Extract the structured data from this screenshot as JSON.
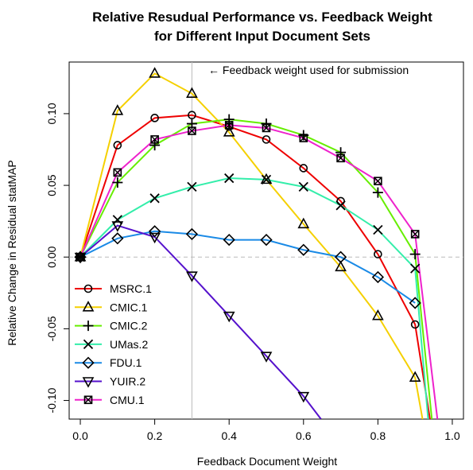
{
  "chart_data": {
    "type": "line",
    "title": [
      "Relative Resudual Performance vs. Feedback Weight",
      "for Different Input Document Sets"
    ],
    "xlabel": "Feedback Document Weight",
    "ylabel": "Relative Change in Residual statMAP",
    "xlim": [
      -0.03,
      1.03
    ],
    "ylim": [
      -0.113,
      0.136
    ],
    "xticks": [
      0.0,
      0.2,
      0.4,
      0.6,
      0.8,
      1.0
    ],
    "xtick_labels": [
      "0.0",
      "0.2",
      "0.4",
      "0.6",
      "0.8",
      "1.0"
    ],
    "yticks": [
      -0.1,
      -0.05,
      0.0,
      0.05,
      0.1
    ],
    "ytick_labels": [
      "-0.10",
      "-0.05",
      "0.00",
      "0.05",
      "0.10"
    ],
    "reference_lines": {
      "horizontal_y": 0.0,
      "vertical_x": 0.3
    },
    "annotation": "← Feedback weight used for submission",
    "legend_position": "bottom-left",
    "grid": false,
    "series": [
      {
        "name": "MSRC.1",
        "color": "#ee0000",
        "marker": "circle",
        "x": [
          0.0,
          0.1,
          0.2,
          0.3,
          0.4,
          0.5,
          0.6,
          0.7,
          0.8,
          0.9,
          0.94
        ],
        "y": [
          0.0,
          0.078,
          0.097,
          0.099,
          0.091,
          0.082,
          0.062,
          0.039,
          0.002,
          -0.047,
          -0.113
        ],
        "markers": [
          true,
          true,
          true,
          true,
          true,
          true,
          true,
          true,
          true,
          true,
          false
        ]
      },
      {
        "name": "CMIC.1",
        "color": "#f5d000",
        "marker": "triangle-up",
        "x": [
          0.0,
          0.1,
          0.2,
          0.3,
          0.4,
          0.5,
          0.6,
          0.7,
          0.8,
          0.9,
          0.92
        ],
        "y": [
          0.0,
          0.102,
          0.128,
          0.114,
          0.087,
          0.054,
          0.023,
          -0.007,
          -0.041,
          -0.084,
          -0.113
        ],
        "markers": [
          true,
          true,
          true,
          true,
          true,
          true,
          true,
          true,
          true,
          true,
          false
        ]
      },
      {
        "name": "CMIC.2",
        "color": "#66ee00",
        "marker": "plus",
        "x": [
          0.0,
          0.1,
          0.2,
          0.3,
          0.4,
          0.5,
          0.6,
          0.7,
          0.8,
          0.9,
          0.945
        ],
        "y": [
          0.0,
          0.052,
          0.078,
          0.093,
          0.096,
          0.093,
          0.085,
          0.073,
          0.045,
          0.002,
          -0.113
        ],
        "markers": [
          true,
          true,
          true,
          true,
          true,
          true,
          true,
          true,
          true,
          true,
          false
        ]
      },
      {
        "name": "UMas.2",
        "color": "#33eeaa",
        "marker": "x",
        "x": [
          0.0,
          0.1,
          0.2,
          0.3,
          0.4,
          0.5,
          0.6,
          0.7,
          0.8,
          0.9,
          0.935
        ],
        "y": [
          0.0,
          0.026,
          0.041,
          0.049,
          0.055,
          0.054,
          0.049,
          0.036,
          0.019,
          -0.008,
          -0.113
        ],
        "markers": [
          true,
          true,
          true,
          true,
          true,
          true,
          true,
          true,
          true,
          true,
          false
        ]
      },
      {
        "name": "FDU.1",
        "color": "#1a8ae6",
        "marker": "diamond",
        "x": [
          0.0,
          0.1,
          0.2,
          0.3,
          0.4,
          0.5,
          0.6,
          0.7,
          0.8,
          0.9
        ],
        "y": [
          0.0,
          0.013,
          0.018,
          0.016,
          0.012,
          0.012,
          0.005,
          0.0,
          -0.014,
          -0.032
        ],
        "markers": [
          true,
          true,
          true,
          true,
          true,
          true,
          true,
          true,
          true,
          true
        ]
      },
      {
        "name": "YUIR.2",
        "color": "#5511cc",
        "marker": "triangle-down",
        "x": [
          0.0,
          0.1,
          0.2,
          0.3,
          0.4,
          0.5,
          0.6,
          0.647
        ],
        "y": [
          0.0,
          0.022,
          0.014,
          -0.013,
          -0.041,
          -0.069,
          -0.097,
          -0.113
        ],
        "markers": [
          true,
          true,
          true,
          true,
          true,
          true,
          true,
          false
        ]
      },
      {
        "name": "CMU.1",
        "color": "#ee22cc",
        "marker": "boxed-x",
        "x": [
          0.0,
          0.1,
          0.2,
          0.3,
          0.4,
          0.5,
          0.6,
          0.7,
          0.8,
          0.9,
          0.96
        ],
        "y": [
          0.0,
          0.059,
          0.082,
          0.088,
          0.092,
          0.09,
          0.083,
          0.069,
          0.053,
          0.016,
          -0.113
        ],
        "markers": [
          true,
          true,
          true,
          true,
          true,
          true,
          true,
          true,
          true,
          true,
          false
        ]
      }
    ]
  }
}
